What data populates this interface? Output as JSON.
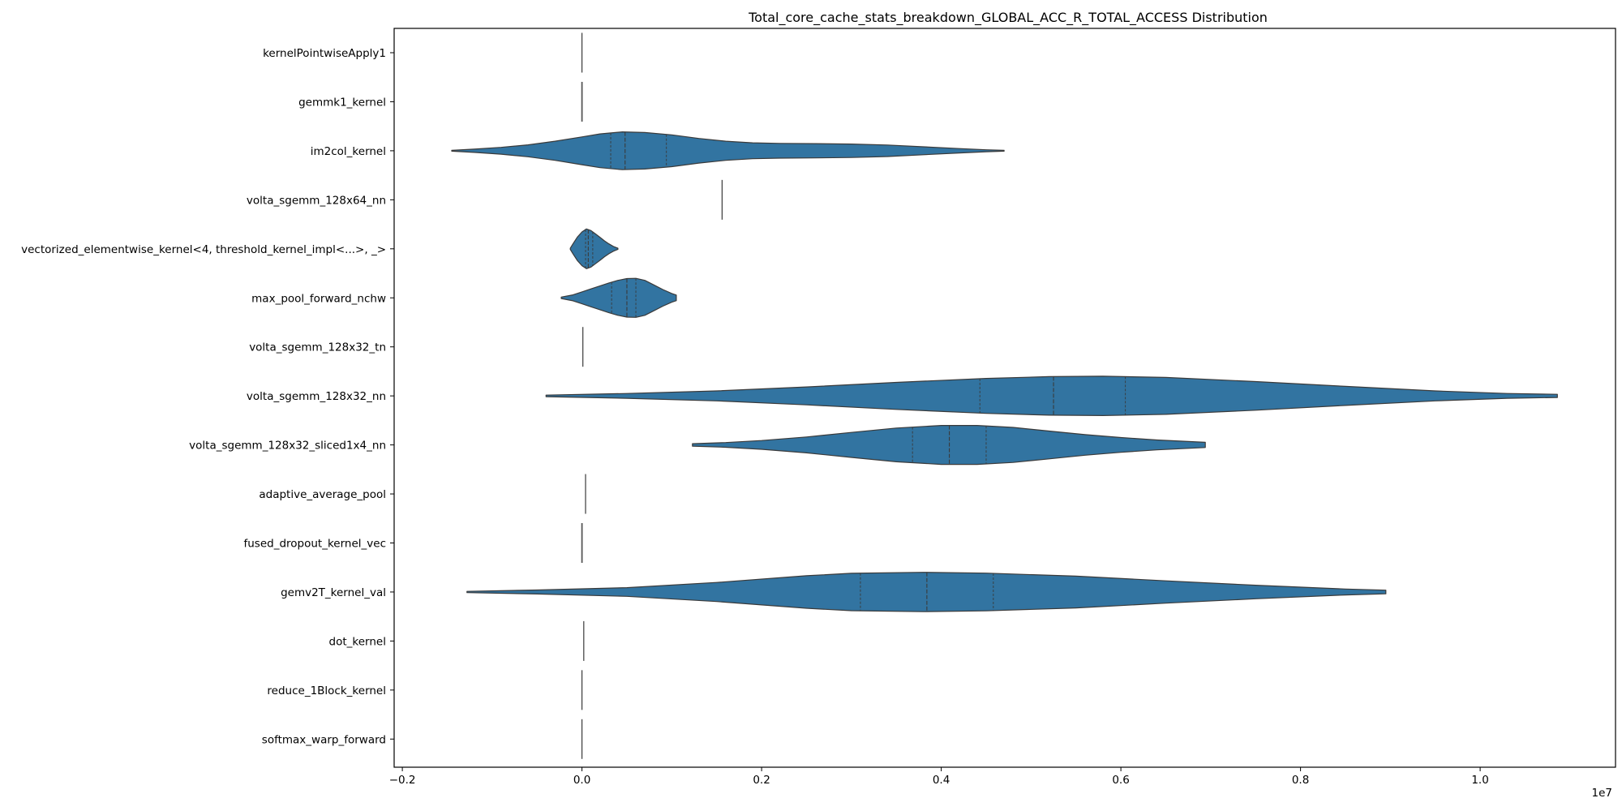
{
  "chart_data": {
    "type": "violin",
    "orientation": "horizontal",
    "title": "Total_core_cache_stats_breakdown_GLOBAL_ACC_R_TOTAL_ACCESS Distribution",
    "xlabel": "",
    "ylabel": "",
    "x_offset_label": "1e7",
    "xlim": [
      -0.22,
      1.1
    ],
    "xticks": [
      {
        "value": -0.2,
        "label": "−0.2"
      },
      {
        "value": 0.0,
        "label": "0.0"
      },
      {
        "value": 0.2,
        "label": "0.2"
      },
      {
        "value": 0.4,
        "label": "0.4"
      },
      {
        "value": 0.6,
        "label": "0.6"
      },
      {
        "value": 0.8,
        "label": "0.8"
      },
      {
        "value": 1.0,
        "label": "1.0"
      }
    ],
    "grid": false,
    "color": "#3274a1",
    "edge_color": "#3a3a3a",
    "categories": [
      {
        "name": "kernelPointwiseApply1",
        "degenerate": true,
        "value": 0.0
      },
      {
        "name": "gemmk1_kernel",
        "degenerate": true,
        "value": 0.0,
        "spread": 0.0008
      },
      {
        "name": "im2col_kernel",
        "min": -0.145,
        "max": 0.47,
        "q1": 0.032,
        "median": 0.048,
        "q3": 0.094,
        "profile": [
          [
            -0.145,
            0.02
          ],
          [
            -0.12,
            0.08
          ],
          [
            -0.09,
            0.17
          ],
          [
            -0.06,
            0.3
          ],
          [
            -0.03,
            0.48
          ],
          [
            0.0,
            0.7
          ],
          [
            0.02,
            0.85
          ],
          [
            0.045,
            0.95
          ],
          [
            0.07,
            0.92
          ],
          [
            0.1,
            0.8
          ],
          [
            0.13,
            0.62
          ],
          [
            0.16,
            0.48
          ],
          [
            0.19,
            0.4
          ],
          [
            0.22,
            0.37
          ],
          [
            0.26,
            0.36
          ],
          [
            0.3,
            0.34
          ],
          [
            0.34,
            0.29
          ],
          [
            0.38,
            0.2
          ],
          [
            0.42,
            0.11
          ],
          [
            0.45,
            0.05
          ],
          [
            0.47,
            0.02
          ]
        ]
      },
      {
        "name": "volta_sgemm_128x64_nn",
        "degenerate": true,
        "value": 0.156
      },
      {
        "name": "vectorized_elementwise_kernel<4, threshold_kernel_impl<...>, _>",
        "min": -0.013,
        "max": 0.04,
        "q1": 0.004,
        "median": 0.007,
        "q3": 0.012,
        "profile": [
          [
            -0.013,
            0.03
          ],
          [
            -0.01,
            0.25
          ],
          [
            -0.005,
            0.6
          ],
          [
            0.0,
            0.85
          ],
          [
            0.005,
            1.0
          ],
          [
            0.01,
            0.92
          ],
          [
            0.015,
            0.75
          ],
          [
            0.02,
            0.58
          ],
          [
            0.025,
            0.4
          ],
          [
            0.03,
            0.25
          ],
          [
            0.035,
            0.12
          ],
          [
            0.04,
            0.03
          ]
        ]
      },
      {
        "name": "max_pool_forward_nchw",
        "min": -0.023,
        "max": 0.105,
        "q1": 0.033,
        "median": 0.05,
        "q3": 0.06,
        "profile": [
          [
            -0.023,
            0.04
          ],
          [
            -0.01,
            0.15
          ],
          [
            0.0,
            0.3
          ],
          [
            0.01,
            0.45
          ],
          [
            0.02,
            0.6
          ],
          [
            0.03,
            0.75
          ],
          [
            0.04,
            0.88
          ],
          [
            0.05,
            0.97
          ],
          [
            0.06,
            0.98
          ],
          [
            0.07,
            0.88
          ],
          [
            0.08,
            0.65
          ],
          [
            0.09,
            0.42
          ],
          [
            0.1,
            0.22
          ],
          [
            0.105,
            0.14
          ]
        ]
      },
      {
        "name": "volta_sgemm_128x32_tn",
        "degenerate": true,
        "value": 0.001
      },
      {
        "name": "volta_sgemm_128x32_nn",
        "min": -0.04,
        "max": 1.086,
        "q1": 0.443,
        "median": 0.525,
        "q3": 0.605,
        "profile": [
          [
            -0.04,
            0.04
          ],
          [
            0.05,
            0.12
          ],
          [
            0.15,
            0.25
          ],
          [
            0.25,
            0.45
          ],
          [
            0.35,
            0.68
          ],
          [
            0.45,
            0.88
          ],
          [
            0.52,
            0.97
          ],
          [
            0.58,
            0.99
          ],
          [
            0.65,
            0.93
          ],
          [
            0.75,
            0.72
          ],
          [
            0.85,
            0.48
          ],
          [
            0.95,
            0.25
          ],
          [
            1.03,
            0.12
          ],
          [
            1.086,
            0.08
          ]
        ]
      },
      {
        "name": "volta_sgemm_128x32_sliced1x4_nn",
        "min": 0.123,
        "max": 0.694,
        "q1": 0.368,
        "median": 0.409,
        "q3": 0.45,
        "profile": [
          [
            0.123,
            0.06
          ],
          [
            0.16,
            0.12
          ],
          [
            0.2,
            0.22
          ],
          [
            0.25,
            0.4
          ],
          [
            0.3,
            0.63
          ],
          [
            0.35,
            0.85
          ],
          [
            0.4,
            0.98
          ],
          [
            0.44,
            0.98
          ],
          [
            0.48,
            0.88
          ],
          [
            0.52,
            0.7
          ],
          [
            0.56,
            0.52
          ],
          [
            0.6,
            0.37
          ],
          [
            0.64,
            0.25
          ],
          [
            0.694,
            0.13
          ]
        ]
      },
      {
        "name": "adaptive_average_pool",
        "degenerate": true,
        "value": 0.004
      },
      {
        "name": "fused_dropout_kernel_vec",
        "degenerate": true,
        "value": 0.0,
        "spread": 0.0008
      },
      {
        "name": "gemv2T_kernel_val",
        "min": -0.128,
        "max": 0.895,
        "q1": 0.31,
        "median": 0.384,
        "q3": 0.458,
        "profile": [
          [
            -0.128,
            0.03
          ],
          [
            -0.05,
            0.1
          ],
          [
            0.05,
            0.22
          ],
          [
            0.15,
            0.48
          ],
          [
            0.25,
            0.82
          ],
          [
            0.3,
            0.94
          ],
          [
            0.38,
            0.99
          ],
          [
            0.45,
            0.95
          ],
          [
            0.55,
            0.8
          ],
          [
            0.65,
            0.56
          ],
          [
            0.75,
            0.34
          ],
          [
            0.85,
            0.15
          ],
          [
            0.895,
            0.09
          ]
        ]
      },
      {
        "name": "dot_kernel",
        "degenerate": true,
        "value": 0.002
      },
      {
        "name": "reduce_1Block_kernel",
        "degenerate": true,
        "value": 0.0
      },
      {
        "name": "softmax_warp_forward",
        "degenerate": true,
        "value": 0.0
      }
    ]
  }
}
